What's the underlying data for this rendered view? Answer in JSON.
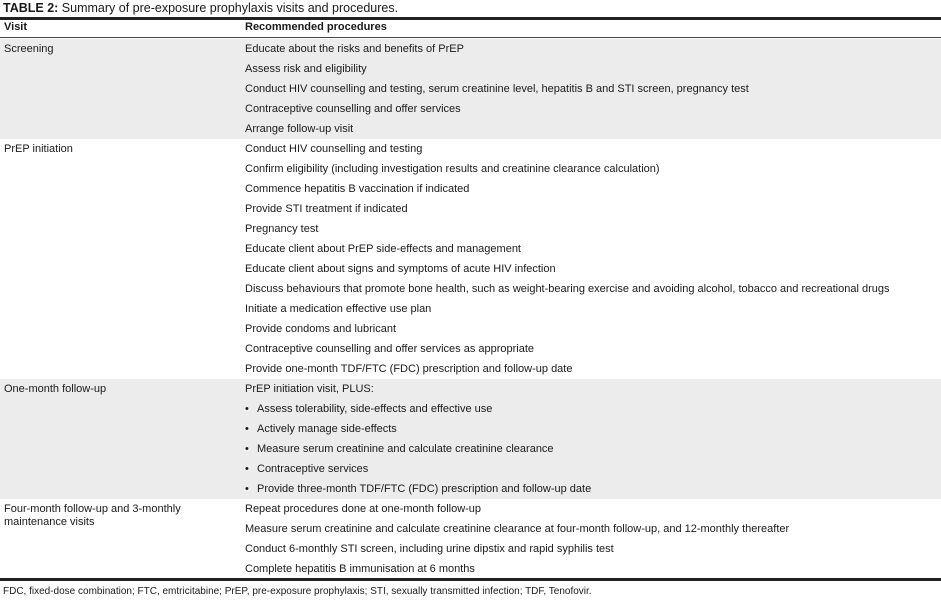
{
  "caption": {
    "label": "TABLE 2:",
    "text": " Summary of pre-exposure prophylaxis visits and procedures."
  },
  "headers": {
    "visit": "Visit",
    "procedures": "Recommended procedures"
  },
  "groups": [
    {
      "visit": "Screening",
      "shaded": true,
      "procedures": [
        {
          "text": "Educate about the risks and benefits of PrEP"
        },
        {
          "text": "Assess risk and eligibility"
        },
        {
          "text": "Conduct HIV counselling and testing, serum creatinine level, hepatitis B and STI screen, pregnancy test"
        },
        {
          "text": "Contraceptive counselling and offer services"
        },
        {
          "text": "Arrange follow-up visit"
        }
      ]
    },
    {
      "visit": "PrEP initiation",
      "shaded": false,
      "procedures": [
        {
          "text": "Conduct HIV counselling and testing"
        },
        {
          "text": "Confirm eligibility (including investigation results and creatinine clearance calculation)"
        },
        {
          "text": "Commence hepatitis B vaccination if indicated"
        },
        {
          "text": "Provide STI treatment if indicated"
        },
        {
          "text": "Pregnancy test"
        },
        {
          "text": "Educate client about PrEP side-effects and management"
        },
        {
          "text": "Educate client about signs and symptoms of acute HIV infection"
        },
        {
          "text": "Discuss behaviours that promote bone health, such as weight-bearing exercise and avoiding alcohol, tobacco and recreational drugs"
        },
        {
          "text": "Initiate a medication effective use plan"
        },
        {
          "text": "Provide condoms and lubricant"
        },
        {
          "text": "Contraceptive counselling and offer services as appropriate"
        },
        {
          "text": "Provide one-month TDF/FTC (FDC) prescription and follow-up date"
        }
      ]
    },
    {
      "visit": "One-month follow-up",
      "shaded": true,
      "procedures": [
        {
          "text": "PrEP initiation visit, PLUS:"
        },
        {
          "text": "Assess tolerability, side-effects and effective use",
          "bullet": "•"
        },
        {
          "text": "Actively manage side-effects",
          "bullet": "•"
        },
        {
          "text": "Measure serum creatinine and calculate creatinine clearance",
          "bullet": "•"
        },
        {
          "text": "Contraceptive services",
          "bullet": "•"
        },
        {
          "text": "Provide three-month TDF/FTC (FDC) prescription and follow-up date",
          "bullet": "•"
        }
      ]
    },
    {
      "visit": "Four-month follow-up and 3-monthly maintenance visits",
      "shaded": false,
      "procedures": [
        {
          "text": "Repeat procedures done at one-month follow-up"
        },
        {
          "text": "Measure serum creatinine and calculate creatinine clearance at four-month follow-up, and 12-monthly thereafter"
        },
        {
          "text": "Conduct 6-monthly STI screen, including urine dipstix and rapid syphilis test"
        },
        {
          "text": "Complete hepatitis B immunisation at 6 months"
        }
      ]
    }
  ],
  "footnote": "FDC, fixed-dose combination; FTC, emtricitabine; PrEP, pre-exposure prophylaxis; STI, sexually transmitted infection; TDF, Tenofovir."
}
